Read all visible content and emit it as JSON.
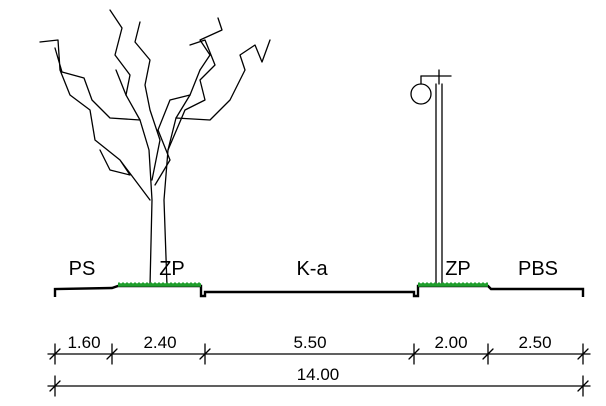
{
  "zones": [
    {
      "label": "PS"
    },
    {
      "label": "ZP"
    },
    {
      "label": "K-a"
    },
    {
      "label": "ZP"
    },
    {
      "label": "PBS"
    }
  ],
  "dimensions": {
    "segments": [
      "1.60",
      "2.40",
      "5.50",
      "2.00",
      "2.50"
    ],
    "total": "14.00"
  },
  "colors": {
    "line": "#000000",
    "grass": "#1f9e2c",
    "background": "#ffffff"
  },
  "icons": [
    "tree-icon",
    "street-lamp-icon"
  ]
}
